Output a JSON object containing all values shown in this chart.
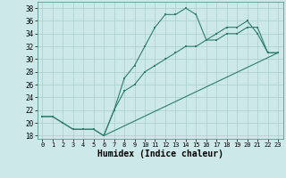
{
  "xlabel": "Humidex (Indice chaleur)",
  "bg_color": "#cce8e8",
  "line_color": "#2e7d6e",
  "grid_color": "#aacece",
  "xlim": [
    -0.5,
    23.5
  ],
  "ylim": [
    17.5,
    39.0
  ],
  "xticks": [
    0,
    1,
    2,
    3,
    4,
    5,
    6,
    7,
    8,
    9,
    10,
    11,
    12,
    13,
    14,
    15,
    16,
    17,
    18,
    19,
    20,
    21,
    22,
    23
  ],
  "yticks": [
    18,
    20,
    22,
    24,
    26,
    28,
    30,
    32,
    34,
    36,
    38
  ],
  "curve1_x": [
    0,
    1,
    2,
    3,
    4,
    5,
    6,
    7,
    8,
    9,
    10,
    11,
    12,
    13,
    14,
    15,
    16,
    17,
    18,
    19,
    20,
    21,
    22,
    23
  ],
  "curve1_y": [
    21,
    21,
    20,
    19,
    19,
    19,
    18,
    22,
    27,
    29,
    32,
    35,
    37,
    37,
    38,
    37,
    33,
    34,
    35,
    35,
    36,
    34,
    31,
    31
  ],
  "curve2_x": [
    0,
    1,
    2,
    3,
    4,
    5,
    6,
    7,
    8,
    9,
    10,
    11,
    12,
    13,
    14,
    15,
    16,
    17,
    18,
    19,
    20,
    21,
    22,
    23
  ],
  "curve2_y": [
    21,
    21,
    20,
    19,
    19,
    19,
    18,
    22,
    25,
    26,
    28,
    29,
    30,
    31,
    32,
    32,
    33,
    33,
    34,
    34,
    35,
    35,
    31,
    31
  ],
  "curve3_x": [
    6,
    23
  ],
  "curve3_y": [
    18,
    31
  ]
}
